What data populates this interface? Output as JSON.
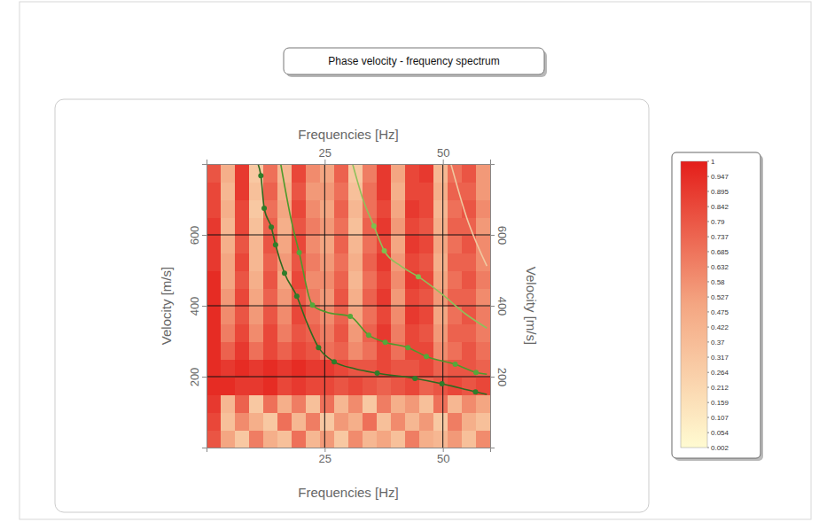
{
  "chart_data": {
    "type": "heatmap",
    "title": "Phase velocity - frequency spectrum",
    "x_label": "Frequencies [Hz]",
    "y_label": "Velocity [m/s]",
    "xlim": [
      0,
      60
    ],
    "ylim": [
      0,
      800
    ],
    "xticks": [
      25,
      50
    ],
    "yticks": [
      200,
      400,
      600
    ],
    "grid": true,
    "heatmap": {
      "x": [
        1.5,
        4.5,
        7.5,
        10.5,
        13.5,
        16.5,
        19.5,
        22.5,
        25.5,
        28.5,
        31.5,
        34.5,
        37.5,
        40.5,
        43.5,
        46.5,
        49.5,
        52.5,
        55.5,
        58.5
      ],
      "y": [
        25,
        75,
        125,
        175,
        225,
        275,
        325,
        375,
        425,
        475,
        525,
        575,
        625,
        675,
        725,
        775
      ],
      "values": [
        [
          0.8,
          0.5,
          0.3,
          0.65,
          0.45,
          0.35,
          0.7,
          0.4,
          0.55,
          0.3,
          0.6,
          0.4,
          0.5,
          0.35,
          0.65,
          0.45,
          0.4,
          0.55,
          0.35,
          0.6
        ],
        [
          0.85,
          0.35,
          0.6,
          0.45,
          0.3,
          0.7,
          0.4,
          0.65,
          0.3,
          0.55,
          0.45,
          0.7,
          0.35,
          0.6,
          0.4,
          0.55,
          0.3,
          0.65,
          0.45,
          0.35
        ],
        [
          0.9,
          0.4,
          0.75,
          0.3,
          0.7,
          0.45,
          0.65,
          0.35,
          0.7,
          0.4,
          0.6,
          0.3,
          0.65,
          0.45,
          0.55,
          0.35,
          0.7,
          0.4,
          0.6,
          0.5
        ],
        [
          0.95,
          0.95,
          0.9,
          0.9,
          0.95,
          0.85,
          0.9,
          0.85,
          0.85,
          0.8,
          0.85,
          0.8,
          0.75,
          0.8,
          0.85,
          0.75,
          0.8,
          0.85,
          0.8,
          0.85
        ],
        [
          0.95,
          0.9,
          0.95,
          0.9,
          0.95,
          0.9,
          0.95,
          0.9,
          0.9,
          0.85,
          0.8,
          0.8,
          0.85,
          0.8,
          0.8,
          0.85,
          0.75,
          0.8,
          0.8,
          0.75
        ],
        [
          0.95,
          0.75,
          0.9,
          0.7,
          0.85,
          0.75,
          0.85,
          0.8,
          0.7,
          0.75,
          0.6,
          0.7,
          0.85,
          0.7,
          0.85,
          0.85,
          0.6,
          0.7,
          0.8,
          0.7
        ],
        [
          0.95,
          0.65,
          0.85,
          0.6,
          0.85,
          0.65,
          0.8,
          0.75,
          0.65,
          0.8,
          0.55,
          0.75,
          0.9,
          0.65,
          0.85,
          0.8,
          0.55,
          0.75,
          0.75,
          0.65
        ],
        [
          0.95,
          0.6,
          0.8,
          0.55,
          0.8,
          0.6,
          0.85,
          0.7,
          0.6,
          0.75,
          0.5,
          0.7,
          0.85,
          0.6,
          0.9,
          0.85,
          0.5,
          0.7,
          0.8,
          0.65
        ],
        [
          0.95,
          0.55,
          0.85,
          0.5,
          0.75,
          0.55,
          0.8,
          0.65,
          0.55,
          0.8,
          0.45,
          0.75,
          0.9,
          0.55,
          0.85,
          0.8,
          0.55,
          0.75,
          0.75,
          0.6
        ],
        [
          0.95,
          0.5,
          0.8,
          0.45,
          0.8,
          0.5,
          0.85,
          0.6,
          0.6,
          0.75,
          0.4,
          0.7,
          0.85,
          0.6,
          0.9,
          0.85,
          0.5,
          0.7,
          0.8,
          0.65
        ],
        [
          0.9,
          0.5,
          0.85,
          0.4,
          0.75,
          0.55,
          0.8,
          0.65,
          0.55,
          0.7,
          0.45,
          0.75,
          0.9,
          0.55,
          0.85,
          0.8,
          0.45,
          0.75,
          0.75,
          0.6
        ],
        [
          0.9,
          0.45,
          0.8,
          0.4,
          0.8,
          0.5,
          0.85,
          0.6,
          0.5,
          0.75,
          0.4,
          0.7,
          0.85,
          0.5,
          0.9,
          0.85,
          0.5,
          0.7,
          0.8,
          0.6
        ],
        [
          0.9,
          0.4,
          0.85,
          0.35,
          0.75,
          0.45,
          0.8,
          0.65,
          0.55,
          0.7,
          0.35,
          0.75,
          0.9,
          0.55,
          0.85,
          0.8,
          0.45,
          0.75,
          0.75,
          0.55
        ],
        [
          0.85,
          0.45,
          0.85,
          0.3,
          0.7,
          0.5,
          0.85,
          0.6,
          0.5,
          0.75,
          0.4,
          0.7,
          0.85,
          0.5,
          0.9,
          0.85,
          0.4,
          0.7,
          0.8,
          0.6
        ],
        [
          0.85,
          0.4,
          0.9,
          0.35,
          0.75,
          0.45,
          0.8,
          0.55,
          0.55,
          0.7,
          0.35,
          0.7,
          0.9,
          0.45,
          0.85,
          0.85,
          0.45,
          0.75,
          0.75,
          0.55
        ],
        [
          0.8,
          0.45,
          0.9,
          0.3,
          0.7,
          0.4,
          0.85,
          0.6,
          0.5,
          0.75,
          0.3,
          0.65,
          0.9,
          0.5,
          0.85,
          0.9,
          0.4,
          0.7,
          0.8,
          0.55
        ]
      ]
    },
    "colorbar": {
      "range": [
        0.002,
        1
      ],
      "ticks": [
        1,
        0.947,
        0.895,
        0.842,
        0.79,
        0.737,
        0.685,
        0.632,
        0.58,
        0.527,
        0.475,
        0.422,
        0.37,
        0.317,
        0.264,
        0.212,
        0.159,
        0.107,
        0.054,
        0.002
      ],
      "colors": [
        "#fffbd2",
        "#f4a682",
        "#e41e1a"
      ]
    },
    "series": [
      {
        "type": "line",
        "color": "#2f6a1f",
        "x": [
          10.9,
          11.5,
          12.2,
          13.7,
          14.6,
          16.5,
          19.1,
          21.1,
          23.7,
          27.0,
          31.5,
          36.1,
          44.1,
          49.8,
          56.9,
          59.3
        ],
        "values": [
          800,
          767,
          675,
          622,
          572,
          492,
          427,
          357,
          282,
          242,
          222,
          210,
          195,
          180,
          157,
          150
        ]
      },
      {
        "type": "scatter",
        "color": "#2f7d2a",
        "marker": "circle",
        "x": [
          11.5,
          12.2,
          13.7,
          14.6,
          16.5,
          19.1,
          23.7,
          27.0,
          36.1,
          44.1,
          49.8,
          56.9
        ],
        "values": [
          767,
          675,
          622,
          572,
          492,
          427,
          282,
          242,
          210,
          195,
          180,
          157
        ]
      },
      {
        "type": "line",
        "color": "#4e9a2c",
        "x": [
          15.7,
          18.0,
          19.6,
          22.4,
          25.4,
          30.4,
          34.3,
          37.8,
          42.6,
          46.5,
          52.6,
          57.0,
          59.3
        ],
        "values": [
          800,
          637,
          550,
          402,
          382,
          370,
          317,
          297,
          282,
          257,
          235,
          212,
          207
        ]
      },
      {
        "type": "scatter",
        "color": "#55a83a",
        "marker": "circle",
        "x": [
          19.6,
          22.4,
          30.4,
          34.3,
          37.8,
          42.6,
          46.5,
          52.6,
          57.0
        ],
        "values": [
          550,
          402,
          370,
          317,
          297,
          282,
          257,
          235,
          212
        ]
      },
      {
        "type": "line",
        "color": "#8fc05a",
        "x": [
          30.9,
          33.1,
          35.4,
          37.6,
          41.1,
          44.8,
          49.4,
          55.0,
          59.3
        ],
        "values": [
          800,
          700,
          625,
          555,
          512,
          482,
          437,
          375,
          337
        ]
      },
      {
        "type": "scatter",
        "color": "#7cc04e",
        "marker": "circle",
        "x": [
          35.4,
          37.6,
          44.8
        ],
        "values": [
          625,
          555,
          482
        ]
      },
      {
        "type": "line",
        "color": "#f0c8a0",
        "x": [
          51.7,
          55.0,
          59.3
        ],
        "values": [
          800,
          650,
          512
        ]
      }
    ]
  }
}
